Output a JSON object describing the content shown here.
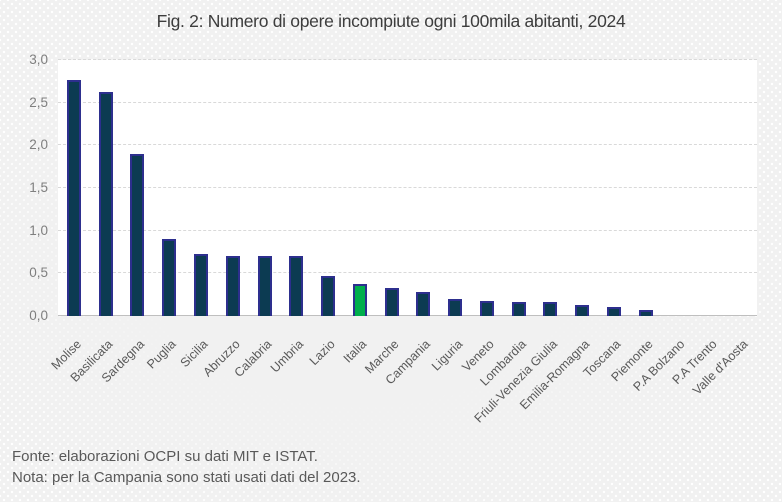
{
  "title": "Fig. 2: Numero di opere incompiute ogni 100mila abitanti, 2024",
  "footer": {
    "fonte": "Fonte: elaborazioni OCPI su dati MIT e ISTAT.",
    "nota": "Nota: per la Campania sono stati usati dati del 2023."
  },
  "colors": {
    "background": "#F1F1F1",
    "plot_bg": "#FFFFFF",
    "grid": "#D9D9D9",
    "axis_line": "#BFBFBF",
    "bar_fill": "#0C3B52",
    "bar_border": "#2D2F8E",
    "highlight_fill": "#00AE4C",
    "title_text": "#3D3D3D",
    "tick_text": "#7F7F7F",
    "label_text": "#595959"
  },
  "chart_data": {
    "type": "bar",
    "title": "Fig. 2: Numero di opere incompiute ogni 100mila abitanti, 2024",
    "categories": [
      "Molise",
      "Basilicata",
      "Sardegna",
      "Puglia",
      "Sicilia",
      "Abruzzo",
      "Calabria",
      "Umbria",
      "Lazio",
      "Italia",
      "Marche",
      "Campania",
      "Liguria",
      "Veneto",
      "Lombardia",
      "Friuli-Venezia Giulia",
      "Emilia-Romagna",
      "Toscana",
      "Piemonte",
      "P.A Bolzano",
      "P.A Trento",
      "Valle d'Aosta"
    ],
    "values": [
      2.77,
      2.63,
      1.9,
      0.9,
      0.73,
      0.7,
      0.7,
      0.7,
      0.47,
      0.38,
      0.33,
      0.28,
      0.2,
      0.18,
      0.17,
      0.17,
      0.13,
      0.1,
      0.07,
      0,
      0,
      0
    ],
    "highlight_category": "Italia",
    "xlabel": "",
    "ylabel": "",
    "ylim": [
      0,
      3.0
    ],
    "y_tick_values": [
      0,
      0.5,
      1.0,
      1.5,
      2.0,
      2.5,
      3.0
    ],
    "y_tick_labels": [
      "0,0",
      "0,5",
      "1,0",
      "1,5",
      "2,0",
      "2,5",
      "3,0"
    ],
    "grid": true,
    "legend": "none",
    "decimal_separator": ","
  }
}
